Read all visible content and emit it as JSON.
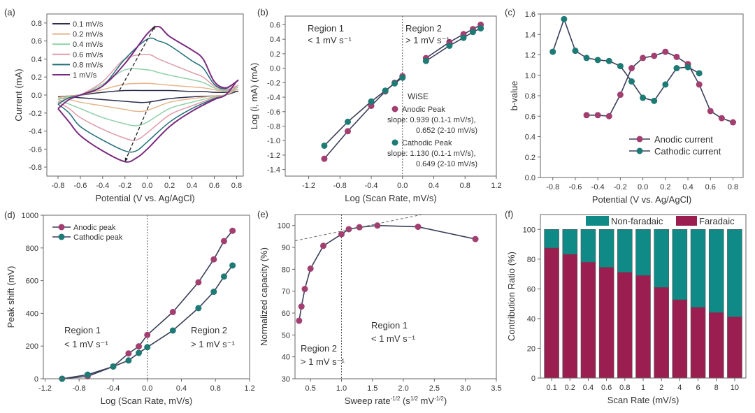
{
  "colors": {
    "anodic": "#a23f70",
    "cathodic": "#1d7a74",
    "faradaic": "#9a1e50",
    "nonfaradaic": "#0f8a86",
    "line": "#3a3a4a",
    "frame": "#666666"
  },
  "chart_data": [
    {
      "panel": "(a)",
      "type": "line",
      "xlabel": "Potential (V vs. Ag/AgCl)",
      "ylabel": "Current (mA)",
      "xlim": [
        -0.9,
        0.86
      ],
      "ylim": [
        -0.9,
        0.9
      ],
      "xticks": [
        "-0.8",
        "-0.6",
        "-0.4",
        "-0.2",
        "0.0",
        "0.2",
        "0.4",
        "0.6",
        "0.8"
      ],
      "yticks": [
        "-0.8",
        "-0.6",
        "-0.4",
        "-0.2",
        "0.0",
        "0.2",
        "0.4",
        "0.6",
        "0.8"
      ],
      "legend_position": "top-left",
      "forward_potential": [
        -0.8,
        -0.7,
        -0.6,
        -0.4,
        -0.2,
        0,
        0.1,
        0.2,
        0.4,
        0.5,
        0.6,
        0.7,
        0.8
      ],
      "reverse_potential": [
        0.8,
        0.7,
        0.6,
        0.4,
        0.2,
        0,
        -0.1,
        -0.2,
        -0.4,
        -0.6,
        -0.7,
        -0.8
      ],
      "series": [
        {
          "name": "0.1 mV/s",
          "color": "#2b2f4f",
          "forward": [
            -0.02,
            -0.01,
            0.0,
            0.03,
            0.05,
            0.05,
            0.05,
            0.05,
            0.04,
            0.04,
            0.03,
            0.03,
            0.04
          ],
          "reverse": [
            0.04,
            0.0,
            -0.01,
            -0.02,
            -0.04,
            -0.08,
            -0.08,
            -0.07,
            -0.05,
            -0.03,
            -0.02,
            -0.02
          ]
        },
        {
          "name": "0.2 mV/s",
          "color": "#e6b58c",
          "forward": [
            -0.03,
            -0.01,
            0.0,
            0.06,
            0.12,
            0.13,
            0.12,
            0.11,
            0.09,
            0.08,
            0.06,
            0.04,
            0.06
          ],
          "reverse": [
            0.06,
            0.0,
            -0.01,
            -0.04,
            -0.08,
            -0.17,
            -0.18,
            -0.16,
            -0.12,
            -0.08,
            -0.05,
            -0.03
          ]
        },
        {
          "name": "0.4 mV/s",
          "color": "#8fd0a8",
          "forward": [
            -0.05,
            -0.02,
            0.0,
            0.12,
            0.28,
            0.28,
            0.25,
            0.22,
            0.17,
            0.14,
            0.08,
            0.05,
            0.08
          ],
          "reverse": [
            0.08,
            0.0,
            -0.02,
            -0.08,
            -0.15,
            -0.3,
            -0.34,
            -0.32,
            -0.25,
            -0.15,
            -0.1,
            -0.05
          ]
        },
        {
          "name": "0.6 mV/s",
          "color": "#e09aa8",
          "forward": [
            -0.08,
            -0.03,
            0.0,
            0.15,
            0.4,
            0.45,
            0.4,
            0.35,
            0.25,
            0.2,
            0.1,
            0.06,
            0.1
          ],
          "reverse": [
            0.1,
            0.0,
            -0.03,
            -0.12,
            -0.22,
            -0.42,
            -0.5,
            -0.48,
            -0.38,
            -0.25,
            -0.15,
            -0.08
          ]
        },
        {
          "name": "0.8 mV/s",
          "color": "#1f6e78",
          "forward": [
            -0.1,
            -0.03,
            0.0,
            0.1,
            0.4,
            0.62,
            0.6,
            0.55,
            0.38,
            0.3,
            0.12,
            0.07,
            0.15
          ],
          "reverse": [
            0.15,
            0.0,
            -0.04,
            -0.15,
            -0.3,
            -0.52,
            -0.62,
            -0.62,
            -0.5,
            -0.35,
            -0.2,
            -0.1
          ]
        },
        {
          "name": "1 mV/s",
          "color": "#7a2a7e",
          "forward": [
            -0.15,
            -0.05,
            0.0,
            0.1,
            0.35,
            0.68,
            0.76,
            0.65,
            0.5,
            0.4,
            0.15,
            0.08,
            0.15
          ],
          "reverse": [
            0.15,
            0.0,
            -0.05,
            -0.18,
            -0.35,
            -0.6,
            -0.7,
            -0.74,
            -0.62,
            -0.45,
            -0.3,
            -0.15
          ]
        }
      ],
      "arrows": [
        {
          "from": [
            -0.25,
            0.05
          ],
          "to": [
            0.07,
            0.77
          ]
        },
        {
          "from": [
            0.03,
            -0.07
          ],
          "to": [
            -0.2,
            -0.74
          ]
        }
      ]
    },
    {
      "panel": "(b)",
      "type": "scatter",
      "xlabel": "Log (Scan Rate, mV/s)",
      "ylabel": "Log (i, mA) (mA)",
      "xlim": [
        -1.5,
        1.2
      ],
      "ylim": [
        -1.49,
        0.72
      ],
      "xticks": [
        "-1.2",
        "-0.8",
        "-0.4",
        "0.0",
        "0.4",
        "0.8",
        "1.2"
      ],
      "yticks": [
        "-1.4",
        "-1.2",
        "-1.0",
        "-0.8",
        "-0.6",
        "-0.4",
        "-0.2",
        "0.0",
        "0.2",
        "0.4",
        "0.6"
      ],
      "divider_x": 0,
      "region1": {
        "title": "Region 1",
        "rate": "< 1 mV s⁻¹"
      },
      "region2": {
        "title": "Region 2",
        "rate": "> 1 mV s⁻¹"
      },
      "legend_title": "WiSE",
      "series": [
        {
          "name": "Anodic Peak",
          "slope_line1": "slope: 0.939 (0.1-1 mV/s),",
          "slope_line2": "0.652 (2-10 mV/s)",
          "color_key": "anodic",
          "region1": {
            "x": [
              -1,
              -0.7,
              -0.4,
              -0.22,
              -0.1,
              0
            ],
            "y": [
              -1.25,
              -0.87,
              -0.52,
              -0.32,
              -0.2,
              -0.11
            ]
          },
          "region2": {
            "x": [
              0.3,
              0.6,
              0.78,
              0.9,
              1.0
            ],
            "y": [
              0.14,
              0.36,
              0.47,
              0.54,
              0.6
            ]
          }
        },
        {
          "name": "Cathodic Peak",
          "slope_line1": "slope: 1.130 (0.1-1 mV/s),",
          "slope_line2": "0.649 (2-10 mV/s)",
          "color_key": "cathodic",
          "region1": {
            "x": [
              -1,
              -0.7,
              -0.4,
              -0.22,
              -0.1,
              0
            ],
            "y": [
              -1.07,
              -0.74,
              -0.46,
              -0.31,
              -0.21,
              -0.13
            ]
          },
          "region2": {
            "x": [
              0.3,
              0.6,
              0.78,
              0.9,
              1.0
            ],
            "y": [
              0.1,
              0.31,
              0.42,
              0.5,
              0.55
            ]
          }
        }
      ]
    },
    {
      "panel": "(c)",
      "type": "line",
      "xlabel": "Potential (V vs. Ag/AgCl)",
      "ylabel": "b-value",
      "xlim": [
        -0.91,
        0.89
      ],
      "ylim": [
        0,
        1.6
      ],
      "xticks": [
        "-0.8",
        "-0.6",
        "-0.4",
        "-0.2",
        "0.0",
        "0.2",
        "0.4",
        "0.6",
        "0.8"
      ],
      "yticks": [
        "0.0",
        "0.2",
        "0.4",
        "0.6",
        "0.8",
        "1.0",
        "1.2",
        "1.4",
        "1.6"
      ],
      "legend_position": "bottom-right",
      "series": [
        {
          "name": "Anodic current",
          "color_key": "anodic",
          "x": [
            -0.5,
            -0.4,
            -0.3,
            -0.2,
            -0.1,
            0,
            0.1,
            0.2,
            0.3,
            0.4,
            0.5,
            0.6,
            0.7,
            0.8
          ],
          "y": [
            0.61,
            0.61,
            0.6,
            0.81,
            1.07,
            1.17,
            1.19,
            1.23,
            1.18,
            1.11,
            0.91,
            0.65,
            0.58,
            0.54
          ]
        },
        {
          "name": "Cathodic current",
          "color_key": "cathodic",
          "x": [
            -0.8,
            -0.7,
            -0.6,
            -0.5,
            -0.4,
            -0.3,
            -0.2,
            -0.1,
            0,
            0.1,
            0.2,
            0.3,
            0.4,
            0.5
          ],
          "y": [
            1.23,
            1.55,
            1.24,
            1.17,
            1.15,
            1.14,
            1.09,
            0.94,
            0.78,
            0.75,
            0.91,
            1.07,
            1.08,
            1.02
          ]
        }
      ]
    },
    {
      "panel": "(d)",
      "type": "line",
      "xlabel": "Log (Scan Rate, mV/s)",
      "ylabel": "Peak shift (mV)",
      "xlim": [
        -1.22,
        1.2
      ],
      "ylim": [
        0,
        1000
      ],
      "xticks": [
        "-1.2",
        "-0.8",
        "-0.4",
        "0.0",
        "0.4",
        "0.8",
        "1.2"
      ],
      "yticks": [
        "0",
        "200",
        "400",
        "600",
        "800",
        "1000"
      ],
      "divider_x": 0,
      "legend_position": "top-left",
      "region1": {
        "title": "Region 1",
        "rate": "< 1 mV s⁻¹"
      },
      "region2": {
        "title": "Region 2",
        "rate": "> 1 mV s⁻¹"
      },
      "series": [
        {
          "name": "Anodic peak",
          "color_key": "anodic",
          "x": [
            -1,
            -0.7,
            -0.4,
            -0.22,
            -0.1,
            0,
            0.3,
            0.6,
            0.78,
            0.9,
            1.0
          ],
          "y": [
            0,
            15,
            75,
            155,
            198,
            268,
            408,
            590,
            730,
            842,
            905
          ]
        },
        {
          "name": "Cathodic peak",
          "color_key": "cathodic",
          "x": [
            -1,
            -0.7,
            -0.4,
            -0.22,
            -0.1,
            0,
            0.3,
            0.6,
            0.78,
            0.9,
            1.0
          ],
          "y": [
            0,
            25,
            75,
            112,
            158,
            193,
            295,
            432,
            532,
            625,
            693
          ]
        }
      ]
    },
    {
      "panel": "(e)",
      "type": "line",
      "xlabel_parts": [
        {
          "t": "Sweep rate"
        },
        {
          "sup": "-1/2"
        },
        {
          "t": " (s"
        },
        {
          "sup": "1/2"
        },
        {
          "t": " mV"
        },
        {
          "sup": "-1/2"
        },
        {
          "t": ")"
        }
      ],
      "ylabel": "Normalized capacity (%)",
      "xlim": [
        0.25,
        3.5
      ],
      "ylim": [
        30,
        105
      ],
      "xticks": [
        "0.5",
        "1.0",
        "1.5",
        "2.0",
        "2.5",
        "3.0",
        "3.5"
      ],
      "yticks": [
        "30",
        "40",
        "50",
        "60",
        "70",
        "80",
        "90",
        "100"
      ],
      "divider_x": 1,
      "trend_line": {
        "from": [
          0.25,
          93
        ],
        "to": [
          2.3,
          105
        ]
      },
      "region1": {
        "title": "Region 1",
        "rate": "< 1 mV s⁻¹"
      },
      "region2": {
        "title": "Region 2",
        "rate": "> 1 mV s⁻¹"
      },
      "series": [
        {
          "name": "Normalized capacity",
          "color_key": "anodic",
          "x": [
            0.316,
            0.354,
            0.408,
            0.5,
            0.707,
            1.0,
            1.118,
            1.29,
            1.58,
            2.236,
            3.162
          ],
          "y": [
            56.5,
            63,
            71,
            80.3,
            90.7,
            96,
            98.3,
            99.2,
            100,
            99.4,
            93.8
          ]
        }
      ]
    },
    {
      "panel": "(f)",
      "type": "bar",
      "xlabel": "Scan Rate (mV/s)",
      "ylabel": "Contribution Ratio (%)",
      "ylim": [
        0,
        110
      ],
      "xticks": [
        "0.1",
        "0.2",
        "0.4",
        "0.6",
        "0.8",
        "1",
        "2",
        "4",
        "6",
        "8",
        "10"
      ],
      "yticks": [
        "0",
        "20",
        "40",
        "60",
        "80",
        "100"
      ],
      "legend_position": "top",
      "series": [
        {
          "name": "Non-faradaic",
          "color_key": "nonfaradaic",
          "values": [
            12.5,
            16.7,
            22,
            25.5,
            28.8,
            31,
            39,
            47.3,
            52.4,
            55.9,
            58.8
          ]
        },
        {
          "name": "Faradaic",
          "color_key": "faradaic",
          "values": [
            87.5,
            83.3,
            78,
            74.5,
            71.2,
            69,
            61,
            52.7,
            47.6,
            44.1,
            41.2
          ]
        }
      ]
    }
  ]
}
